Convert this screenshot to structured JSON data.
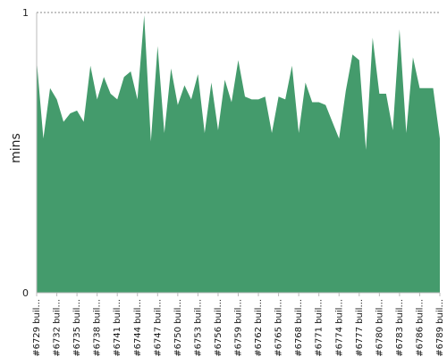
{
  "chart_data": {
    "type": "area",
    "title": "",
    "xlabel": "",
    "ylabel": "mins",
    "ylim": [
      0,
      1
    ],
    "y_ticks": [
      "0",
      "1"
    ],
    "grid": "dashed horizontal line at y = 1",
    "legend": "none",
    "x_tick_labels": [
      "#6729 buil...",
      "#6732 buil...",
      "#6735 buil...",
      "#6738 buil...",
      "#6741 buil...",
      "#6744 buil...",
      "#6747 buil...",
      "#6750 buil...",
      "#6753 buil...",
      "#6756 buil...",
      "#6759 buil...",
      "#6762 buil...",
      "#6765 buil...",
      "#6768 buil...",
      "#6771 buil...",
      "#6774 buil...",
      "#6777 buil...",
      "#6780 buil...",
      "#6783 buil...",
      "#6786 buil...",
      "#6789 buil..."
    ],
    "series": [
      {
        "color": "#449b6c",
        "values": [
          0.83,
          0.55,
          0.73,
          0.69,
          0.61,
          0.64,
          0.65,
          0.61,
          0.81,
          0.69,
          0.77,
          0.71,
          0.69,
          0.77,
          0.79,
          0.69,
          0.99,
          0.54,
          0.88,
          0.57,
          0.8,
          0.67,
          0.74,
          0.69,
          0.78,
          0.57,
          0.75,
          0.58,
          0.76,
          0.68,
          0.83,
          0.7,
          0.69,
          0.69,
          0.7,
          0.57,
          0.7,
          0.69,
          0.81,
          0.57,
          0.75,
          0.68,
          0.68,
          0.67,
          0.61,
          0.55,
          0.72,
          0.85,
          0.83,
          0.51,
          0.91,
          0.71,
          0.71,
          0.58,
          0.94,
          0.57,
          0.84,
          0.73,
          0.73,
          0.73,
          0.55
        ]
      }
    ]
  }
}
